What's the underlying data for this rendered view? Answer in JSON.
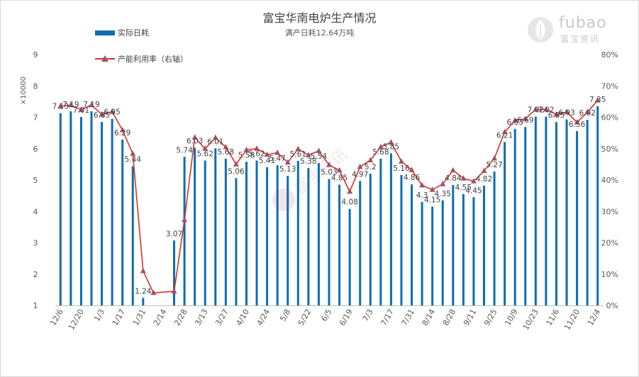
{
  "chart_data": {
    "type": "bar+line",
    "title": "富宝华南电炉生产情况",
    "subtitle": "满产日耗12.64万吨",
    "y_multiplier_label": "×10000",
    "legend": [
      {
        "name": "实际日耗",
        "kind": "bar",
        "color": "#0a6db5"
      },
      {
        "name": "产能利用率（右轴）",
        "kind": "line",
        "color": "#d6342c",
        "marker_color": "#a05070"
      }
    ],
    "left_axis": {
      "ylim": [
        1,
        9
      ],
      "ticks": [
        "1",
        "2",
        "3",
        "4",
        "5",
        "6",
        "7",
        "8",
        "9"
      ]
    },
    "right_axis": {
      "ylim": [
        0,
        80
      ],
      "ticks": [
        "0%",
        "10%",
        "20%",
        "30%",
        "40%",
        "50%",
        "60%",
        "70%",
        "80%"
      ]
    },
    "x_tick_labels": [
      "12/6",
      "12/20",
      "1/3",
      "1/17",
      "1/31",
      "2/14",
      "2/28",
      "3/13",
      "3/27",
      "4/10",
      "4/24",
      "5/8",
      "5/22",
      "6/5",
      "6/19",
      "7/3",
      "7/17",
      "7/31",
      "8/14",
      "8/28",
      "9/11",
      "9/25",
      "10/9",
      "10/23",
      "11/6",
      "11/20",
      "12/4"
    ],
    "series": [
      {
        "name": "实际日耗",
        "values": [
          7.13,
          7.19,
          7.01,
          7.19,
          6.85,
          6.95,
          6.29,
          5.44,
          1.24,
          null,
          null,
          3.07,
          5.74,
          6.03,
          5.62,
          6.01,
          5.68,
          5.06,
          5.58,
          5.62,
          5.41,
          5.47,
          5.13,
          5.61,
          5.38,
          5.54,
          5.03,
          4.85,
          4.08,
          4.97,
          5.2,
          5.68,
          5.85,
          5.16,
          4.86,
          4.3,
          4.15,
          4.35,
          4.84,
          4.55,
          4.45,
          4.82,
          5.27,
          6.21,
          6.63,
          6.69,
          7.02,
          7.02,
          6.85,
          6.93,
          6.56,
          6.92,
          7.35
        ],
        "data_labels": [
          "7.13",
          "7.19",
          "7.01",
          "7.19",
          "6.85",
          "6.95",
          "6.29",
          "5.44",
          "1.24",
          "",
          "",
          "3.07",
          "5.74",
          "6.03",
          "5.62",
          "6.01",
          "5.68",
          "5.06",
          "5.58",
          "5.62",
          "5.41",
          "5.47",
          "5.13",
          "5.61",
          "5.38",
          "5.54",
          "5.03",
          "4.85",
          "4.08",
          "4.97",
          "5.2",
          "5.68",
          "5.85",
          "5.16",
          "4.86",
          "4.3",
          "4.15",
          "4.35",
          "4.84",
          "4.55",
          "4.45",
          "4.82",
          "5.27",
          "6.21",
          "6.63",
          "6.69",
          "7.02",
          "7.02",
          "6.85",
          "6.93",
          "6.56",
          "6.92",
          "7.35"
        ]
      },
      {
        "name": "产能利用率（右轴）",
        "axis": "right",
        "values": [
          63.5,
          63.9,
          62.4,
          63.9,
          60.9,
          61.8,
          55.9,
          48.4,
          11.0,
          4.0,
          null,
          4.5,
          27.3,
          53.6,
          50.0,
          53.5,
          50.5,
          45.0,
          49.6,
          50.0,
          48.1,
          48.7,
          45.6,
          49.9,
          47.9,
          49.3,
          44.8,
          43.1,
          36.3,
          44.2,
          46.3,
          50.5,
          52.0,
          45.9,
          43.2,
          38.3,
          36.9,
          38.7,
          43.1,
          40.5,
          39.6,
          42.9,
          46.9,
          55.3,
          59.0,
          59.5,
          62.5,
          62.5,
          60.9,
          61.7,
          58.4,
          61.6,
          65.4
        ]
      }
    ],
    "grid": false
  },
  "watermark": {
    "text": "富宝资讯",
    "logo_text": "fubao",
    "logo_sub": "富宝资讯"
  }
}
